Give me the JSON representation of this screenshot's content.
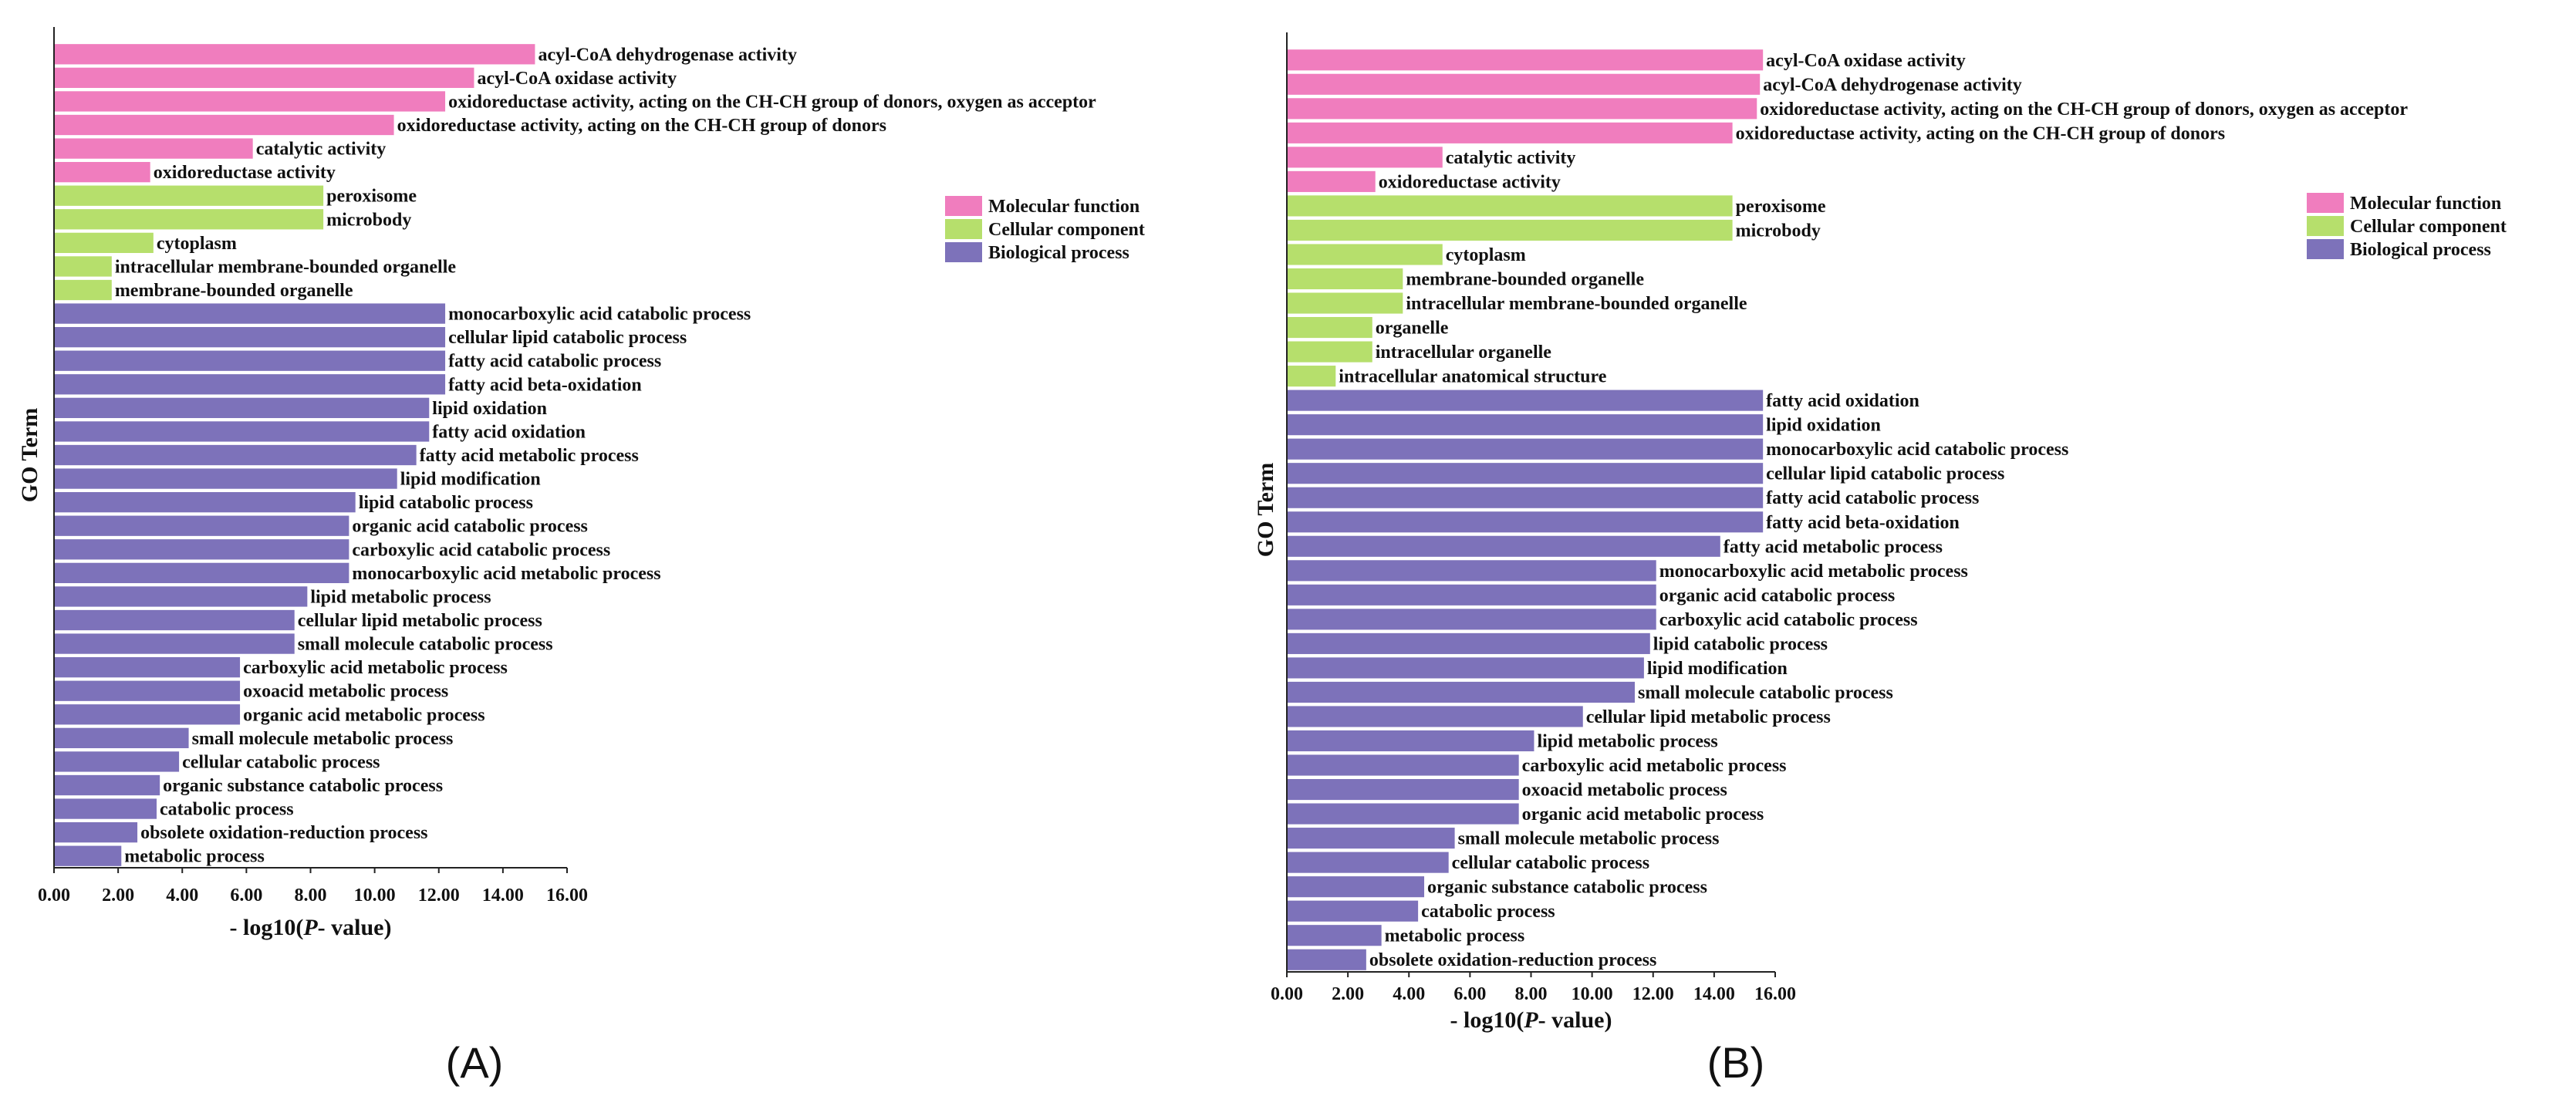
{
  "colors": {
    "Molecular function": "#f07dbe",
    "Cellular component": "#b6df6c",
    "Biological process": "#7d72ba"
  },
  "chart_data": [
    {
      "type": "bar",
      "orientation": "horizontal",
      "panel_label": "(A)",
      "xlabel_prefix": "- log10(",
      "xlabel_italic": "P",
      "xlabel_suffix": "- value)",
      "ylabel": "GO Term",
      "xlim": [
        0,
        16
      ],
      "xticks": [
        "0.00",
        "2.00",
        "4.00",
        "6.00",
        "8.00",
        "10.00",
        "12.00",
        "14.00",
        "16.00"
      ],
      "legend": [
        "Molecular function",
        "Cellular component",
        "Biological process"
      ],
      "bars": [
        {
          "term": "acyl-CoA dehydrogenase activity",
          "value": 15.0,
          "category": "Molecular function"
        },
        {
          "term": "acyl-CoA oxidase activity",
          "value": 13.1,
          "category": "Molecular function"
        },
        {
          "term": "oxidoreductase activity, acting on the CH-CH group of donors, oxygen as acceptor",
          "value": 12.2,
          "category": "Molecular function"
        },
        {
          "term": "oxidoreductase activity, acting on the CH-CH group of donors",
          "value": 10.6,
          "category": "Molecular function"
        },
        {
          "term": "catalytic activity",
          "value": 6.2,
          "category": "Molecular function"
        },
        {
          "term": "oxidoreductase activity",
          "value": 3.0,
          "category": "Molecular function"
        },
        {
          "term": "peroxisome",
          "value": 8.4,
          "category": "Cellular component"
        },
        {
          "term": "microbody",
          "value": 8.4,
          "category": "Cellular component"
        },
        {
          "term": "cytoplasm",
          "value": 3.1,
          "category": "Cellular component"
        },
        {
          "term": "intracellular membrane-bounded organelle",
          "value": 1.8,
          "category": "Cellular component"
        },
        {
          "term": "membrane-bounded organelle",
          "value": 1.8,
          "category": "Cellular component"
        },
        {
          "term": "monocarboxylic acid catabolic process",
          "value": 12.2,
          "category": "Biological process"
        },
        {
          "term": "cellular lipid catabolic process",
          "value": 12.2,
          "category": "Biological process"
        },
        {
          "term": "fatty acid catabolic process",
          "value": 12.2,
          "category": "Biological process"
        },
        {
          "term": "fatty acid beta-oxidation",
          "value": 12.2,
          "category": "Biological process"
        },
        {
          "term": "lipid oxidation",
          "value": 11.7,
          "category": "Biological process"
        },
        {
          "term": "fatty acid oxidation",
          "value": 11.7,
          "category": "Biological process"
        },
        {
          "term": "fatty acid metabolic process",
          "value": 11.3,
          "category": "Biological process"
        },
        {
          "term": "lipid modification",
          "value": 10.7,
          "category": "Biological process"
        },
        {
          "term": "lipid catabolic process",
          "value": 9.4,
          "category": "Biological process"
        },
        {
          "term": "organic acid catabolic process",
          "value": 9.2,
          "category": "Biological process"
        },
        {
          "term": "carboxylic acid catabolic process",
          "value": 9.2,
          "category": "Biological process"
        },
        {
          "term": "monocarboxylic acid metabolic process",
          "value": 9.2,
          "category": "Biological process"
        },
        {
          "term": "lipid metabolic process",
          "value": 7.9,
          "category": "Biological process"
        },
        {
          "term": "cellular lipid metabolic process",
          "value": 7.5,
          "category": "Biological process"
        },
        {
          "term": "small molecule catabolic process",
          "value": 7.5,
          "category": "Biological process"
        },
        {
          "term": "carboxylic acid metabolic process",
          "value": 5.8,
          "category": "Biological process"
        },
        {
          "term": "oxoacid metabolic process",
          "value": 5.8,
          "category": "Biological process"
        },
        {
          "term": "organic acid metabolic process",
          "value": 5.8,
          "category": "Biological process"
        },
        {
          "term": "small molecule metabolic process",
          "value": 4.2,
          "category": "Biological process"
        },
        {
          "term": "cellular catabolic process",
          "value": 3.9,
          "category": "Biological process"
        },
        {
          "term": "organic substance catabolic process",
          "value": 3.3,
          "category": "Biological process"
        },
        {
          "term": "catabolic process",
          "value": 3.2,
          "category": "Biological process"
        },
        {
          "term": "obsolete oxidation-reduction process",
          "value": 2.6,
          "category": "Biological process"
        },
        {
          "term": "metabolic process",
          "value": 2.1,
          "category": "Biological process"
        }
      ]
    },
    {
      "type": "bar",
      "orientation": "horizontal",
      "panel_label": "(B)",
      "xlabel_prefix": "- log10(",
      "xlabel_italic": "P",
      "xlabel_suffix": "- value)",
      "ylabel": "GO Term",
      "xlim": [
        0,
        16
      ],
      "xticks": [
        "0.00",
        "2.00",
        "4.00",
        "6.00",
        "8.00",
        "10.00",
        "12.00",
        "14.00",
        "16.00"
      ],
      "legend": [
        "Molecular function",
        "Cellular component",
        "Biological process"
      ],
      "bars": [
        {
          "term": "acyl-CoA oxidase activity",
          "value": 15.6,
          "category": "Molecular function"
        },
        {
          "term": "acyl-CoA dehydrogenase activity",
          "value": 15.5,
          "category": "Molecular function"
        },
        {
          "term": "oxidoreductase activity, acting on the CH-CH group of donors, oxygen as acceptor",
          "value": 15.4,
          "category": "Molecular function"
        },
        {
          "term": "oxidoreductase activity, acting on the CH-CH group of donors",
          "value": 14.6,
          "category": "Molecular function"
        },
        {
          "term": "catalytic activity",
          "value": 5.1,
          "category": "Molecular function"
        },
        {
          "term": "oxidoreductase activity",
          "value": 2.9,
          "category": "Molecular function"
        },
        {
          "term": "peroxisome",
          "value": 14.6,
          "category": "Cellular component"
        },
        {
          "term": "microbody",
          "value": 14.6,
          "category": "Cellular component"
        },
        {
          "term": "cytoplasm",
          "value": 5.1,
          "category": "Cellular component"
        },
        {
          "term": "membrane-bounded organelle",
          "value": 3.8,
          "category": "Cellular component"
        },
        {
          "term": "intracellular membrane-bounded organelle",
          "value": 3.8,
          "category": "Cellular component"
        },
        {
          "term": "organelle",
          "value": 2.8,
          "category": "Cellular component"
        },
        {
          "term": "intracellular organelle",
          "value": 2.8,
          "category": "Cellular component"
        },
        {
          "term": "intracellular anatomical structure",
          "value": 1.6,
          "category": "Cellular component"
        },
        {
          "term": "fatty acid oxidation",
          "value": 15.6,
          "category": "Biological process"
        },
        {
          "term": "lipid oxidation",
          "value": 15.6,
          "category": "Biological process"
        },
        {
          "term": "monocarboxylic acid catabolic process",
          "value": 15.6,
          "category": "Biological process"
        },
        {
          "term": "cellular lipid catabolic process",
          "value": 15.6,
          "category": "Biological process"
        },
        {
          "term": "fatty acid catabolic process",
          "value": 15.6,
          "category": "Biological process"
        },
        {
          "term": "fatty acid beta-oxidation",
          "value": 15.6,
          "category": "Biological process"
        },
        {
          "term": "fatty acid metabolic process",
          "value": 14.2,
          "category": "Biological process"
        },
        {
          "term": "monocarboxylic acid metabolic process",
          "value": 12.1,
          "category": "Biological process"
        },
        {
          "term": "organic acid catabolic process",
          "value": 12.1,
          "category": "Biological process"
        },
        {
          "term": "carboxylic acid catabolic process",
          "value": 12.1,
          "category": "Biological process"
        },
        {
          "term": "lipid catabolic process",
          "value": 11.9,
          "category": "Biological process"
        },
        {
          "term": "lipid modification",
          "value": 11.7,
          "category": "Biological process"
        },
        {
          "term": "small molecule catabolic process",
          "value": 11.4,
          "category": "Biological process"
        },
        {
          "term": "cellular lipid metabolic process",
          "value": 9.7,
          "category": "Biological process"
        },
        {
          "term": "lipid metabolic process",
          "value": 8.1,
          "category": "Biological process"
        },
        {
          "term": "carboxylic acid metabolic process",
          "value": 7.6,
          "category": "Biological process"
        },
        {
          "term": "oxoacid metabolic process",
          "value": 7.6,
          "category": "Biological process"
        },
        {
          "term": "organic acid metabolic process",
          "value": 7.6,
          "category": "Biological process"
        },
        {
          "term": "small molecule metabolic process",
          "value": 5.5,
          "category": "Biological process"
        },
        {
          "term": "cellular catabolic process",
          "value": 5.3,
          "category": "Biological process"
        },
        {
          "term": "organic substance catabolic process",
          "value": 4.5,
          "category": "Biological process"
        },
        {
          "term": "catabolic process",
          "value": 4.3,
          "category": "Biological process"
        },
        {
          "term": "metabolic process",
          "value": 3.1,
          "category": "Biological process"
        },
        {
          "term": "obsolete oxidation-reduction process",
          "value": 2.6,
          "category": "Biological process"
        }
      ]
    }
  ]
}
